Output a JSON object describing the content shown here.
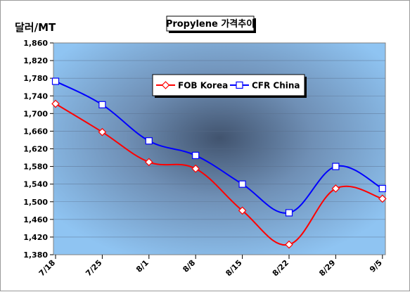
{
  "chart_data": {
    "type": "line",
    "title": "Propylene 가격추이",
    "ylabel": "달러/MT",
    "xlabel": "",
    "categories": [
      "7/18",
      "7/25",
      "8/1",
      "8/8",
      "8/15",
      "8/22",
      "8/29",
      "9/5"
    ],
    "series": [
      {
        "name": "FOB Korea",
        "values": [
          1722,
          1658,
          1590,
          1575,
          1480,
          1403,
          1530,
          1507
        ],
        "color": "#ff0000"
      },
      {
        "name": "CFR China",
        "values": [
          1773,
          1720,
          1638,
          1605,
          1540,
          1475,
          1580,
          1530
        ],
        "color": "#0000ff"
      }
    ],
    "ylim": [
      1380,
      1860
    ],
    "yticks": [
      "1,380",
      "1,420",
      "1,460",
      "1,500",
      "1,540",
      "1,580",
      "1,620",
      "1,660",
      "1,700",
      "1,740",
      "1,780",
      "1,820",
      "1,860"
    ],
    "grid": true,
    "legend": "top-center"
  }
}
